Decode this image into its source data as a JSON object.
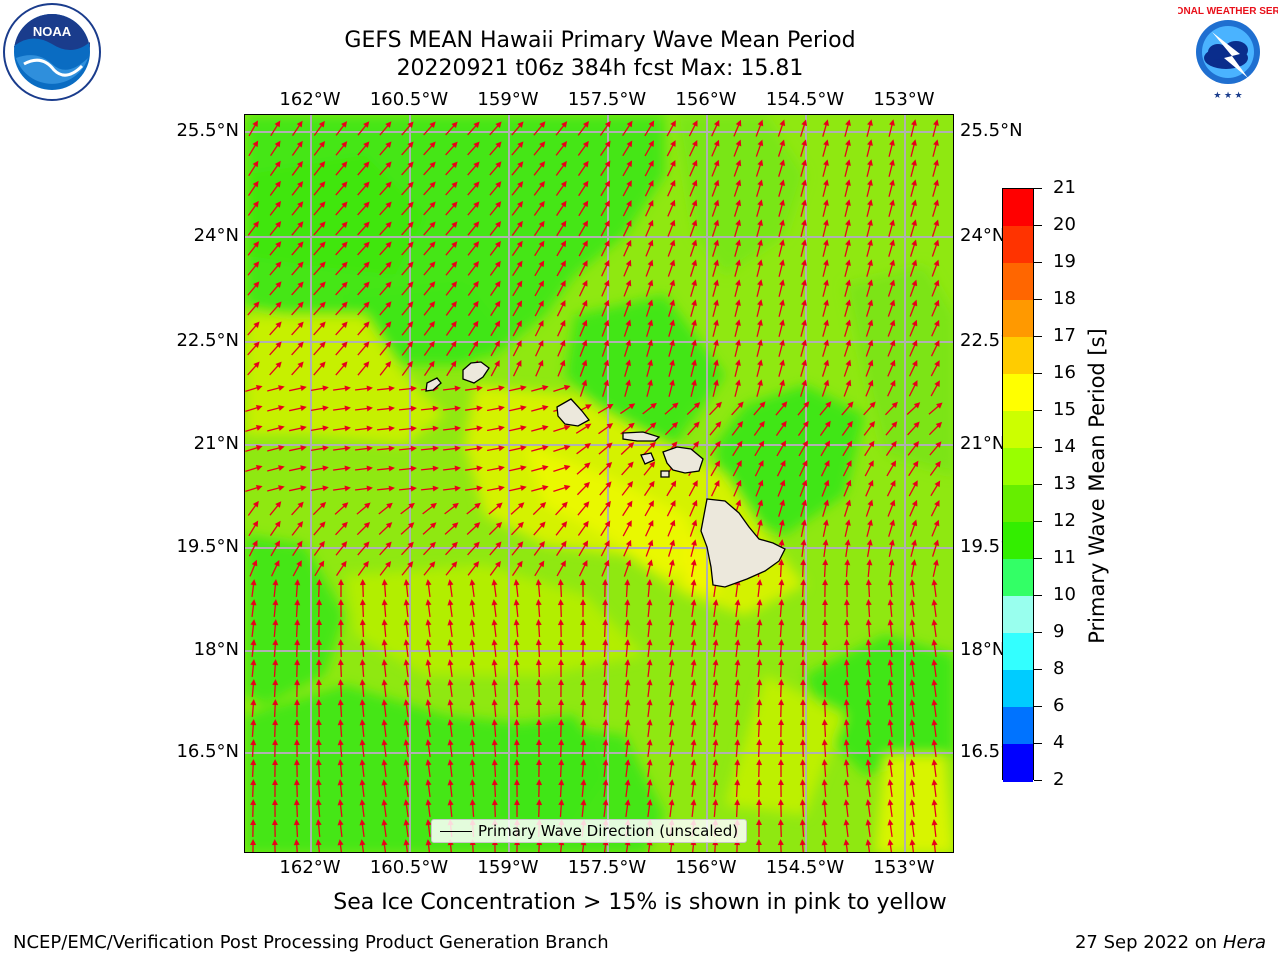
{
  "title": {
    "line1": "GEFS MEAN Hawaii Primary Wave Mean Period",
    "line2": "20220921 t06z 384h fcst   Max: 15.81"
  },
  "map": {
    "lon_labels": [
      "162°W",
      "160.5°W",
      "159°W",
      "157.5°W",
      "156°W",
      "154.5°W",
      "153°W"
    ],
    "lat_labels": [
      "25.5°N",
      "24°N",
      "22.5°N",
      "21°N",
      "19.5°N",
      "18°N",
      "16.5°N"
    ],
    "legend_label": "Primary Wave Direction (unscaled)",
    "arrow_color": "#e8001a",
    "land_color": "#ece8dc"
  },
  "colorbar": {
    "label": "Primary Wave Mean Period [s]",
    "ticks": [
      "2",
      "4",
      "6",
      "8",
      "9",
      "10",
      "11",
      "12",
      "13",
      "14",
      "15",
      "16",
      "17",
      "18",
      "19",
      "20",
      "21"
    ],
    "colors": [
      "#0000ff",
      "#0073ff",
      "#00ccff",
      "#33ffff",
      "#99ffee",
      "#33ff66",
      "#33ee00",
      "#66ee00",
      "#99ff00",
      "#ccff00",
      "#ffff00",
      "#ffcc00",
      "#ff9900",
      "#ff6600",
      "#ff3300",
      "#ff0000"
    ]
  },
  "footer": {
    "note": "Sea Ice Concentration > 15% is shown in pink to yellow",
    "credit": "NCEP/EMC/Verification Post Processing Product Generation Branch",
    "date": "27 Sep 2022 on",
    "machine": "Hera"
  },
  "logos": {
    "noaa": "NOAA",
    "nws": "NATIONAL WEATHER SERVICE"
  }
}
